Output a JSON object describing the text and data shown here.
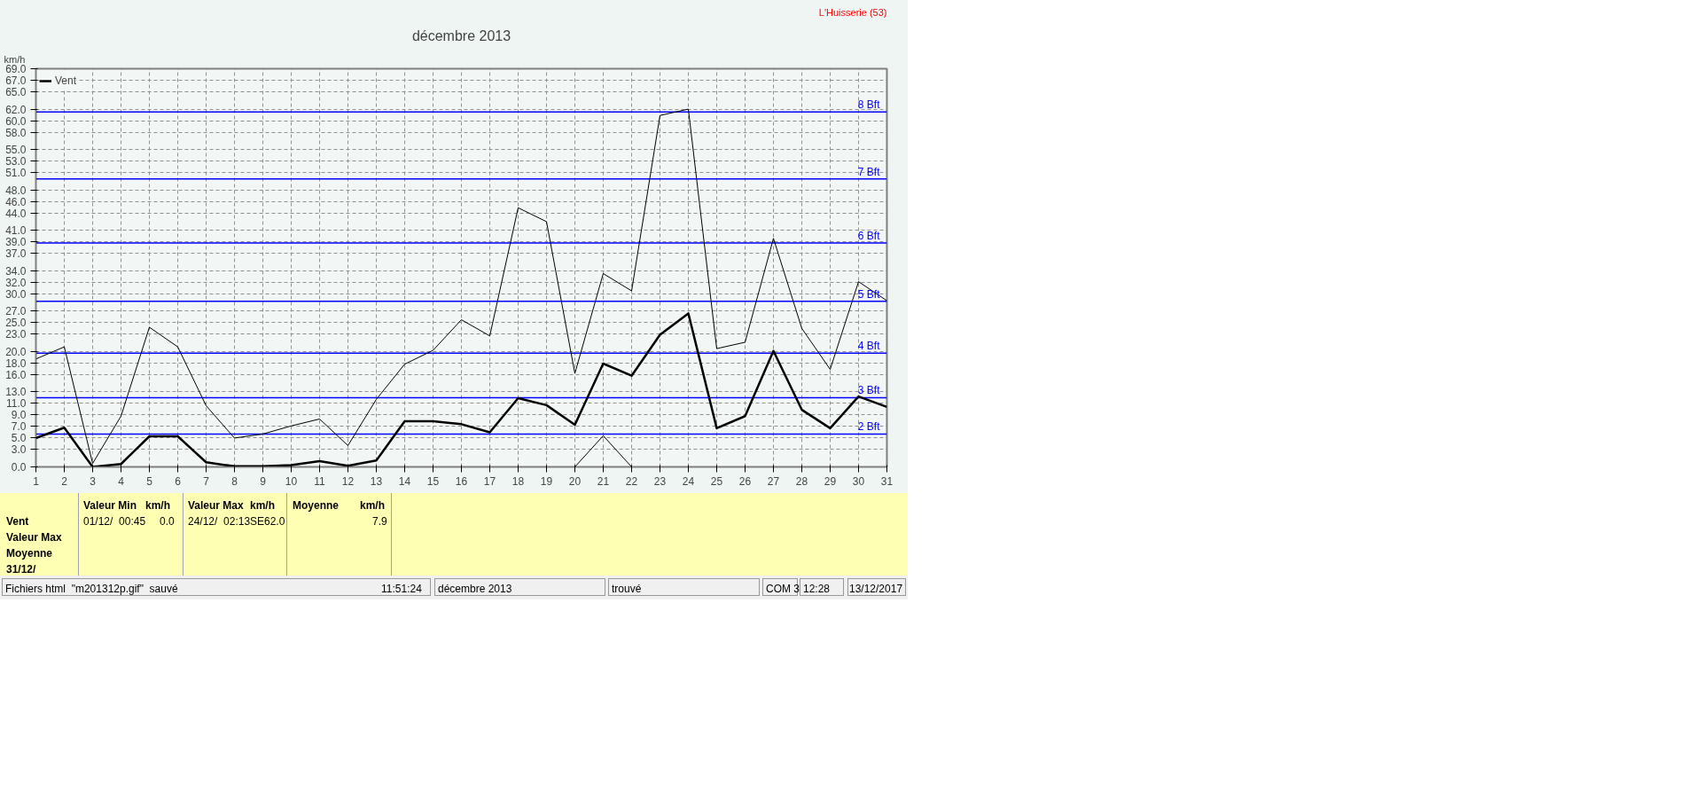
{
  "chart_data": {
    "type": "line",
    "title": "décembre 2013",
    "ylabel": "km/h",
    "x": [
      1,
      2,
      3,
      4,
      5,
      6,
      7,
      8,
      9,
      10,
      11,
      12,
      13,
      14,
      15,
      16,
      17,
      18,
      19,
      20,
      21,
      22,
      23,
      24,
      25,
      26,
      27,
      28,
      29,
      30,
      31
    ],
    "series": [
      {
        "name": "Vent",
        "color": "#000000",
        "values": [
          5.0,
          6.8,
          0.0,
          0.5,
          5.3,
          5.3,
          0.8,
          0.1,
          0.1,
          0.3,
          1.0,
          0.2,
          1.1,
          7.9,
          7.9,
          7.4,
          6.0,
          11.9,
          10.7,
          7.3,
          17.9,
          15.8,
          22.9,
          26.6,
          6.7,
          8.8,
          20.1,
          9.9,
          6.7,
          12.2,
          10.4
        ]
      },
      {
        "color": "#000000",
        "values": [
          18.7,
          20.8,
          0.6,
          8.8,
          24.2,
          20.8,
          10.6,
          5.0,
          5.7,
          7.1,
          8.3,
          3.7,
          11.7,
          17.8,
          20.2,
          25.5,
          22.7,
          44.9,
          42.5,
          16.2,
          33.5,
          30.5,
          60.9,
          62.0,
          20.5,
          21.6,
          39.6,
          24.0,
          16.9,
          32.1,
          28.8
        ]
      },
      {
        "color": "#000000",
        "values": [
          null,
          null,
          null,
          null,
          null,
          null,
          null,
          null,
          null,
          null,
          null,
          null,
          null,
          null,
          null,
          null,
          null,
          null,
          null,
          0.0,
          5.4,
          0.0,
          null,
          null,
          null,
          null,
          null,
          null,
          null,
          null,
          null
        ]
      }
    ],
    "xlim": [
      1,
      31
    ],
    "xticks": [
      1,
      2,
      3,
      4,
      5,
      6,
      7,
      8,
      9,
      10,
      11,
      12,
      13,
      14,
      15,
      16,
      17,
      18,
      19,
      20,
      21,
      22,
      23,
      24,
      25,
      26,
      27,
      28,
      29,
      30,
      31
    ],
    "ylim": [
      0,
      69
    ],
    "yticks": [
      {
        "value": 0,
        "label": "0.0"
      },
      {
        "value": 3,
        "label": "3.0"
      },
      {
        "value": 5,
        "label": "5.0"
      },
      {
        "value": 7,
        "label": "7.0"
      },
      {
        "value": 9,
        "label": "9.0"
      },
      {
        "value": 11,
        "label": "11.0"
      },
      {
        "value": 13,
        "label": "13.0"
      },
      {
        "value": 16,
        "label": "16.0"
      },
      {
        "value": 18,
        "label": "18.0"
      },
      {
        "value": 20,
        "label": "20.0"
      },
      {
        "value": 23,
        "label": "23.0"
      },
      {
        "value": 25,
        "label": "25.0"
      },
      {
        "value": 27,
        "label": "27.0"
      },
      {
        "value": 30,
        "label": "30.0"
      },
      {
        "value": 32,
        "label": "32.0"
      },
      {
        "value": 34,
        "label": "34.0"
      },
      {
        "value": 37,
        "label": "37.0"
      },
      {
        "value": 39,
        "label": "39.0"
      },
      {
        "value": 41,
        "label": "41.0"
      },
      {
        "value": 44,
        "label": "44.0"
      },
      {
        "value": 46,
        "label": "46.0"
      },
      {
        "value": 48,
        "label": "48.0"
      },
      {
        "value": 51,
        "label": "51.0"
      },
      {
        "value": 53,
        "label": "53.0"
      },
      {
        "value": 55,
        "label": "55.0"
      },
      {
        "value": 58,
        "label": "58.0"
      },
      {
        "value": 60,
        "label": "60.0"
      },
      {
        "value": 62,
        "label": "62.0"
      },
      {
        "value": 65,
        "label": "65.0"
      },
      {
        "value": 67,
        "label": "67.0"
      },
      {
        "value": 69,
        "label": "69.0"
      }
    ],
    "ref_lines": [
      {
        "axis": "y",
        "value": 5.7,
        "label": "2 Bft",
        "color": "#0000ff"
      },
      {
        "axis": "y",
        "value": 12.0,
        "label": "3 Bft",
        "color": "#0000ff"
      },
      {
        "axis": "y",
        "value": 19.7,
        "label": "4 Bft",
        "color": "#0000ff"
      },
      {
        "axis": "y",
        "value": 28.7,
        "label": "5 Bft",
        "color": "#0000ff"
      },
      {
        "axis": "y",
        "value": 38.8,
        "label": "6 Bft",
        "color": "#0000ff"
      },
      {
        "axis": "y",
        "value": 49.9,
        "label": "7 Bft",
        "color": "#0000ff"
      },
      {
        "axis": "y",
        "value": 61.5,
        "label": "8 Bft",
        "color": "#0000ff"
      }
    ],
    "grid": true,
    "legend": "top left",
    "line_style": "solid",
    "marker": "none",
    "annotations": [
      "L'Huisserie (53)",
      "Vent",
      "Valeur Max",
      "Moyenne",
      "31/12/",
      "Valeur Min",
      "km/h",
      "01/12/  00:45",
      "0.0",
      "Valeur Max",
      "km/h",
      "24/12/  02:13SE",
      "62.0",
      "Moyenne",
      "km/h",
      "7.9",
      "Fichiers html  \"m201312p.gif\"  sauvé",
      "11:51:24",
      "décembre 2013",
      "trouvé",
      "COM 3",
      "12:28",
      "13/12/2017"
    ]
  }
}
